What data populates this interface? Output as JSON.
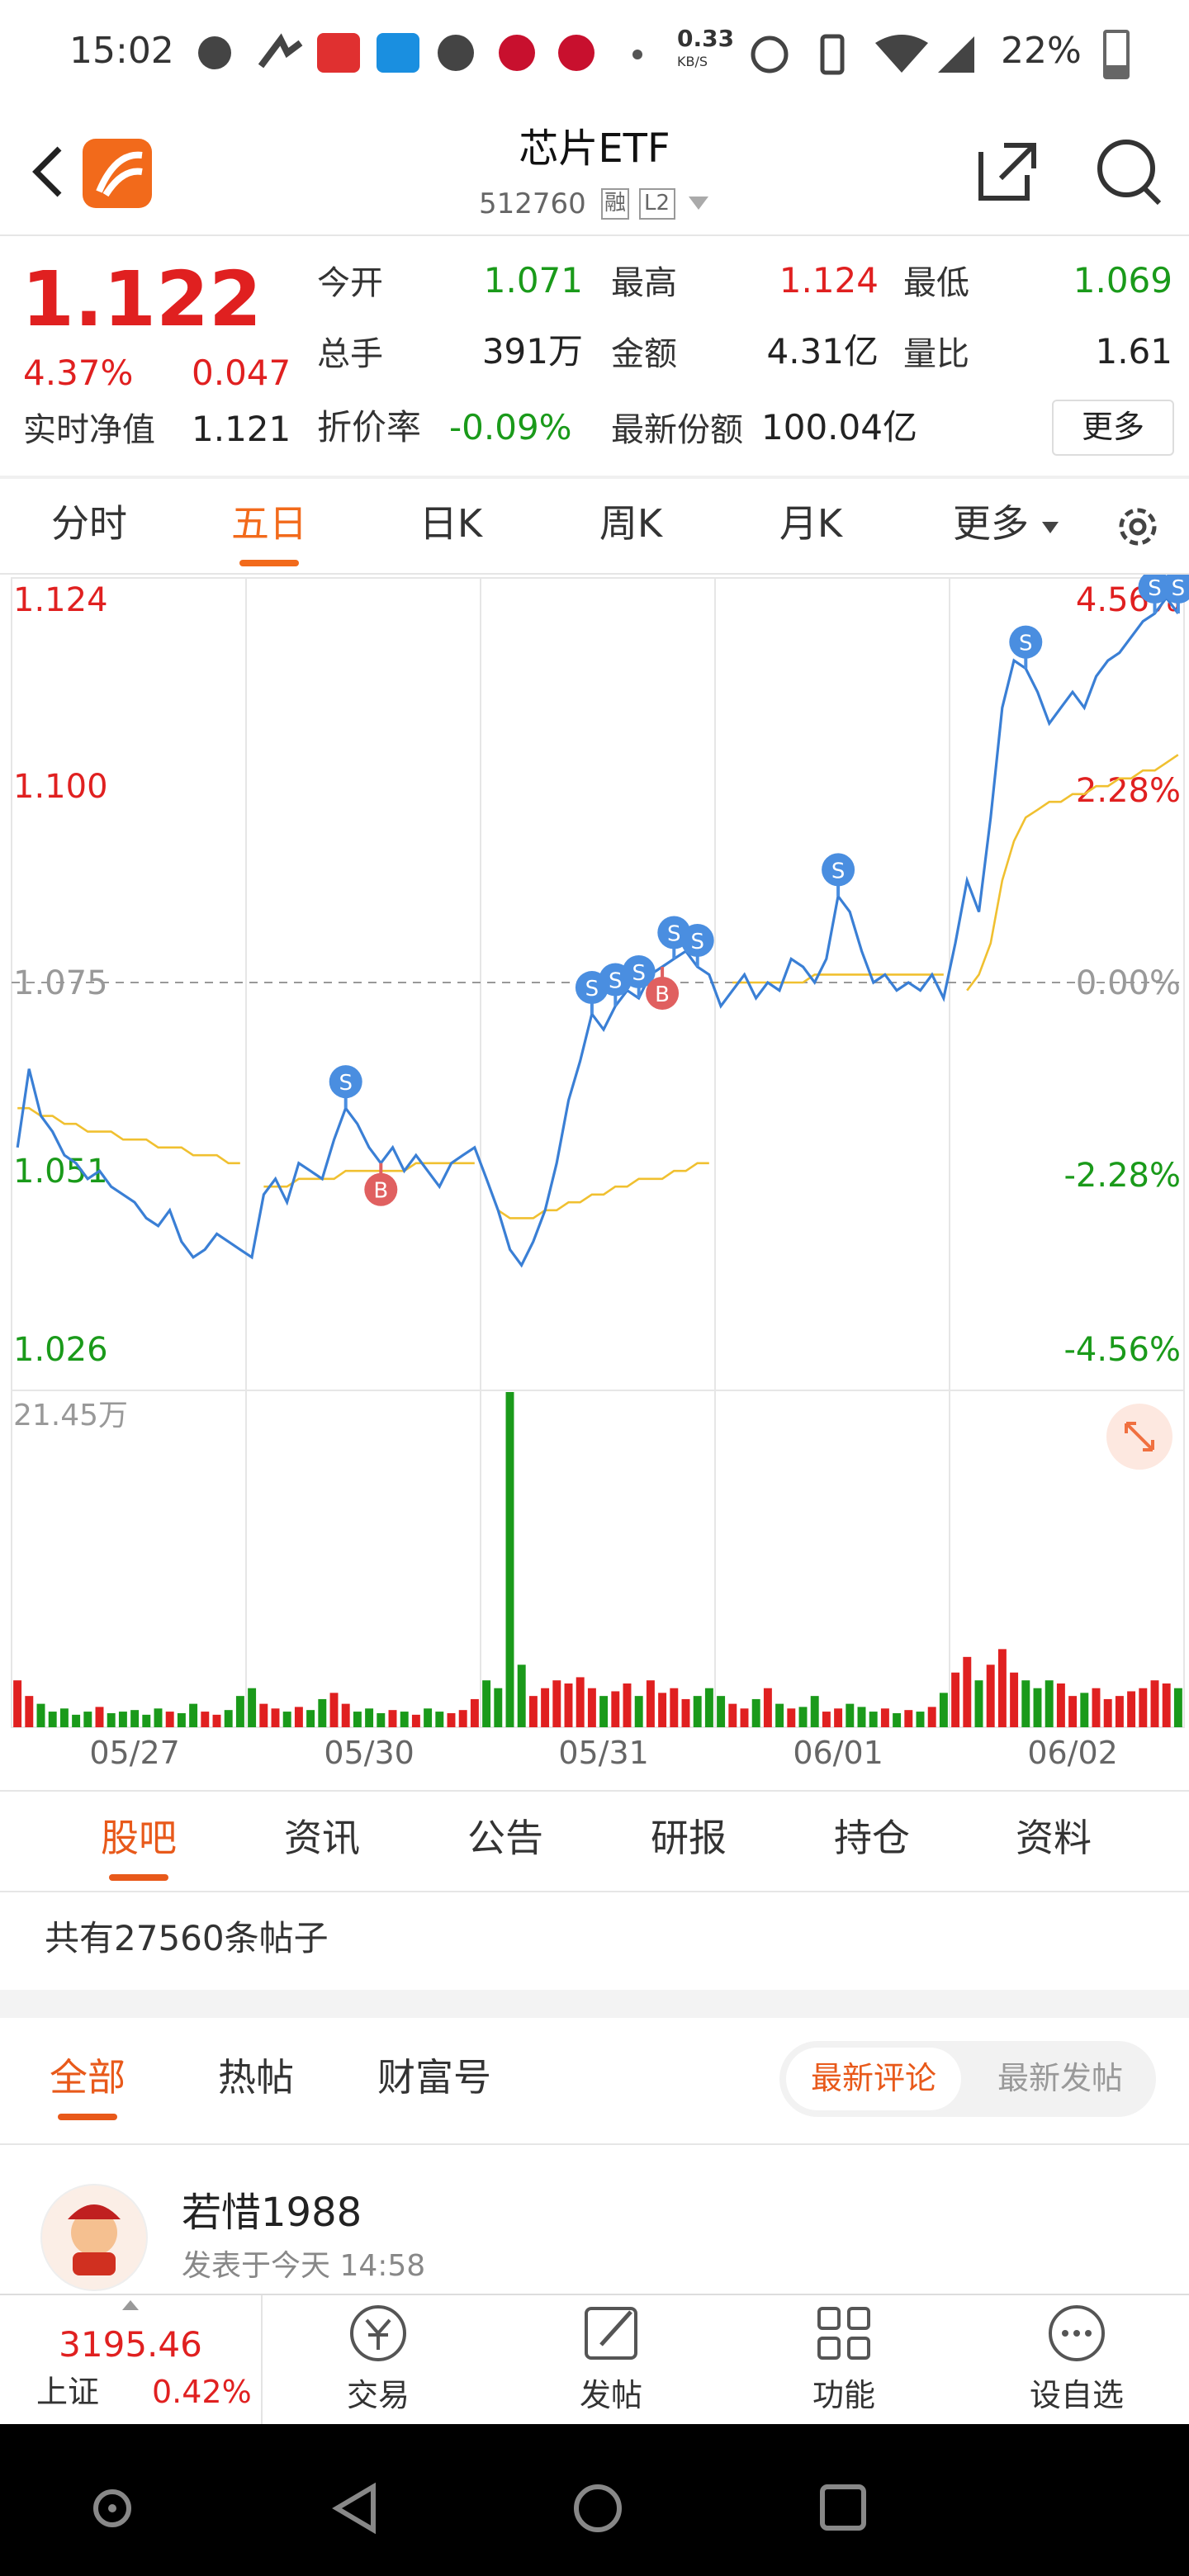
{
  "status_bar": {
    "time": "15:02",
    "speed": "0.33",
    "speed_unit": "KB/S",
    "battery": "22%"
  },
  "header": {
    "title": "芯片ETF",
    "code": "512760",
    "tags": [
      "融",
      "L2"
    ]
  },
  "quote": {
    "price": "1.122",
    "change_pct": "4.37%",
    "change": "0.047",
    "nav_label": "实时净值",
    "nav_value": "1.121",
    "fields": [
      {
        "label": "今开",
        "value": "1.071",
        "color": "#1a9a1a"
      },
      {
        "label": "最高",
        "value": "1.124",
        "color": "#e02020"
      },
      {
        "label": "最低",
        "value": "1.069",
        "color": "#1a9a1a"
      },
      {
        "label": "总手",
        "value": "391万",
        "color": "#222222"
      },
      {
        "label": "金额",
        "value": "4.31亿",
        "color": "#222222"
      },
      {
        "label": "量比",
        "value": "1.61",
        "color": "#222222"
      }
    ],
    "discount": {
      "label": "折价率",
      "value": "-0.09%",
      "color": "#1a9a1a"
    },
    "shares": {
      "label": "最新份额",
      "value": "100.04亿",
      "color": "#222222"
    },
    "more": "更多"
  },
  "chart_tabs": {
    "items": [
      "分时",
      "五日",
      "日K",
      "周K",
      "月K",
      "更多"
    ],
    "active": 1
  },
  "chart_data": {
    "type": "line",
    "categories": [
      null,
      null,
      null,
      null,
      null,
      null,
      null,
      null,
      null,
      null,
      "05/27",
      null,
      null,
      null,
      null,
      null,
      null,
      null,
      null,
      null,
      null,
      null,
      null,
      null,
      null,
      null,
      null,
      null,
      null,
      null,
      "05/30",
      null,
      null,
      null,
      null,
      null,
      null,
      null,
      null,
      null,
      null,
      null,
      null,
      null,
      null,
      null,
      null,
      null,
      null,
      null,
      "05/31",
      null,
      null,
      null,
      null,
      null,
      null,
      null,
      null,
      null,
      null,
      null,
      null,
      null,
      null,
      null,
      null,
      null,
      null,
      null,
      "06/01",
      null,
      null,
      null,
      null,
      null,
      null,
      null,
      null,
      null,
      null,
      null,
      null,
      null,
      null,
      null,
      null,
      null,
      null,
      null,
      "06/02",
      null,
      null,
      null,
      null,
      null,
      null,
      null,
      null,
      null
    ],
    "series": [
      {
        "name": "价格",
        "color": "#3a7fd5",
        "values": [
          1.054,
          1.064,
          1.058,
          1.056,
          1.053,
          1.052,
          1.05,
          1.051,
          1.049,
          1.048,
          1.047,
          1.045,
          1.044,
          1.046,
          1.042,
          1.04,
          1.041,
          1.043,
          1.042,
          1.041,
          1.04,
          1.048,
          1.05,
          1.047,
          1.052,
          1.051,
          1.05,
          1.055,
          1.059,
          1.057,
          1.054,
          1.052,
          1.054,
          1.051,
          1.053,
          1.051,
          1.049,
          1.052,
          1.053,
          1.054,
          1.05,
          1.046,
          1.041,
          1.039,
          1.042,
          1.046,
          1.052,
          1.06,
          1.065,
          1.071,
          1.069,
          1.072,
          1.074,
          1.073,
          1.076,
          1.077,
          1.078,
          1.079,
          1.077,
          1.076,
          1.072,
          1.074,
          1.076,
          1.073,
          1.075,
          1.074,
          1.078,
          1.077,
          1.075,
          1.078,
          1.086,
          1.084,
          1.079,
          1.075,
          1.076,
          1.074,
          1.075,
          1.074,
          1.076,
          1.073,
          1.08,
          1.088,
          1.084,
          1.096,
          1.11,
          1.116,
          1.115,
          1.112,
          1.108,
          1.11,
          1.112,
          1.11,
          1.114,
          1.116,
          1.117,
          1.119,
          1.121,
          1.122,
          1.124,
          1.122
        ]
      },
      {
        "name": "均价",
        "color": "#f0c030",
        "values": [
          1.059,
          1.059,
          1.058,
          1.058,
          1.057,
          1.057,
          1.056,
          1.056,
          1.056,
          1.055,
          1.055,
          1.055,
          1.054,
          1.054,
          1.054,
          1.053,
          1.053,
          1.053,
          1.052,
          1.052,
          null,
          1.049,
          1.049,
          1.049,
          1.05,
          1.05,
          1.05,
          1.05,
          1.051,
          1.051,
          1.051,
          1.051,
          1.051,
          1.051,
          1.052,
          1.052,
          1.052,
          1.052,
          1.052,
          1.052,
          null,
          1.046,
          1.045,
          1.045,
          1.045,
          1.046,
          1.046,
          1.047,
          1.047,
          1.048,
          1.048,
          1.049,
          1.049,
          1.05,
          1.05,
          1.05,
          1.051,
          1.051,
          1.052,
          1.052,
          null,
          1.075,
          1.075,
          1.075,
          1.075,
          1.075,
          1.075,
          1.075,
          1.076,
          1.076,
          1.076,
          1.076,
          1.076,
          1.076,
          1.076,
          1.076,
          1.076,
          1.076,
          1.076,
          1.076,
          null,
          1.074,
          1.076,
          1.08,
          1.088,
          1.093,
          1.096,
          1.097,
          1.098,
          1.098,
          1.099,
          1.099,
          1.1,
          1.1,
          1.101,
          1.101,
          1.102,
          1.102,
          1.103,
          1.104
        ]
      }
    ],
    "ylim": [
      1.026,
      1.124
    ],
    "yticks": [
      1.124,
      {
        "value": 1.1,
        "label": "1.100"
      },
      1.075,
      1.051,
      1.026
    ],
    "y2lim": [
      -4.56,
      4.56
    ],
    "y2ticks": [
      {
        "value": 4.56,
        "label": "4.56%"
      },
      {
        "value": 2.28,
        "label": "2.28%"
      },
      {
        "value": 0,
        "label": "0.00%"
      },
      {
        "value": -2.28,
        "label": "-2.28%"
      },
      {
        "value": -4.56,
        "label": "-4.56%"
      }
    ],
    "up_color": "#e02020",
    "down_color": "#1a9a1a",
    "volume": {
      "values": [
        3,
        2,
        1.5,
        1,
        1.2,
        0.8,
        1,
        1.3,
        0.9,
        1,
        1.1,
        0.8,
        1.2,
        1,
        0.9,
        1.5,
        1,
        0.8,
        1.1,
        2,
        2.5,
        1.5,
        1.2,
        1,
        1.3,
        1.1,
        1.8,
        2.2,
        1.5,
        1,
        1.2,
        0.9,
        1.1,
        1,
        0.8,
        1.2,
        1,
        0.9,
        1.1,
        1.8,
        3,
        2.5,
        21.45,
        4,
        2,
        2.5,
        3,
        2.8,
        3.2,
        2.5,
        2,
        2.3,
        2.8,
        2,
        3,
        2.2,
        2.5,
        1.8,
        2,
        2.5,
        2,
        1.5,
        1.2,
        1.8,
        2.5,
        1.5,
        1.2,
        1.3,
        2,
        1,
        1.2,
        1.5,
        1.3,
        1,
        1.2,
        0.9,
        1.1,
        1,
        1.3,
        2.2,
        3.5,
        4.5,
        3,
        4,
        5,
        3.5,
        3,
        2.5,
        3,
        2.8,
        2,
        2.2,
        2.5,
        1.8,
        2,
        2.3,
        2.5,
        3,
        2.8,
        2.5
      ],
      "ylim": [
        0,
        21.45
      ],
      "yticks": [
        {
          "value": 21.45,
          "label": "21.45万"
        }
      ]
    },
    "trade_marks": [
      {
        "label": "S",
        "index": 28,
        "value": 1.059
      },
      {
        "label": "B",
        "index": 31,
        "value": 1.052
      },
      {
        "label": "S",
        "index": 49,
        "value": 1.071
      },
      {
        "label": "S",
        "index": 51,
        "value": 1.072
      },
      {
        "label": "S",
        "index": 53,
        "value": 1.073
      },
      {
        "label": "B",
        "index": 55,
        "value": 1.077
      },
      {
        "label": "S",
        "index": 56,
        "value": 1.078
      },
      {
        "label": "S",
        "index": 58,
        "value": 1.077
      },
      {
        "label": "S",
        "index": 70,
        "value": 1.086
      },
      {
        "label": "S",
        "index": 86,
        "value": 1.115
      },
      {
        "label": "S",
        "index": 97,
        "value": 1.122
      },
      {
        "label": "S",
        "index": 99,
        "value": 1.122
      }
    ]
  },
  "section_tabs": {
    "items": [
      "股吧",
      "资讯",
      "公告",
      "研报",
      "持仓",
      "资料"
    ],
    "active": 0
  },
  "post_count": "共有27560条帖子",
  "filter_tabs": {
    "items": [
      "全部",
      "热帖",
      "财富号"
    ],
    "active": 0
  },
  "sort_toggle": {
    "items": [
      "最新评论",
      "最新发帖"
    ],
    "active": 0
  },
  "post": {
    "user": "若惜1988",
    "time": "发表于今天 14:58"
  },
  "bottom_bar": {
    "index_value": "3195.46",
    "index_name": "上证",
    "index_change": "0.42%",
    "nav": [
      "交易",
      "发帖",
      "功能",
      "设自选"
    ]
  }
}
